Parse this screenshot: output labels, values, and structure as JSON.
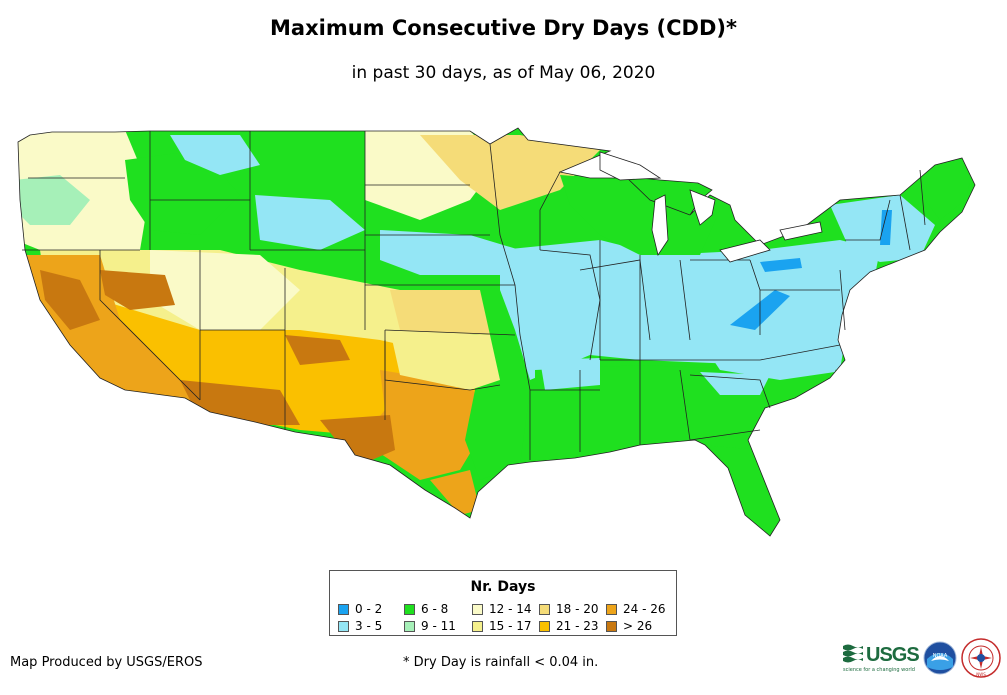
{
  "title": "Maximum Consecutive Dry Days (CDD)*",
  "subtitle": "in past 30 days, as of May 06, 2020",
  "legend": {
    "title": "Nr. Days",
    "items": [
      {
        "label": "0 - 2",
        "color": "#1aa3f0"
      },
      {
        "label": "3 - 5",
        "color": "#94e6f5"
      },
      {
        "label": "6 - 8",
        "color": "#1fe01f"
      },
      {
        "label": "9 - 11",
        "color": "#a6f0b8"
      },
      {
        "label": "12 - 14",
        "color": "#fafac8"
      },
      {
        "label": "15 - 17",
        "color": "#f5f08c"
      },
      {
        "label": "18 - 20",
        "color": "#f5dc78"
      },
      {
        "label": "21 - 23",
        "color": "#fac000"
      },
      {
        "label": "24 - 26",
        "color": "#eda41a"
      },
      {
        "label": "> 26",
        "color": "#c87810"
      }
    ]
  },
  "credit": "Map Produced by USGS/EROS",
  "footnote": "* Dry Day is rainfall < 0.04 in.",
  "logos": {
    "usgs_text": "USGS",
    "usgs_tagline": "science for a changing world",
    "noaa_text": "NOAA",
    "nws_text": "NWS"
  }
}
